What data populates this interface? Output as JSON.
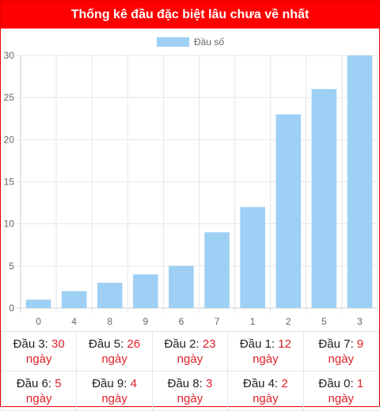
{
  "title": "Thống kê đầu đặc biệt lâu chưa về nhất",
  "colors": {
    "header": "#ff0000",
    "bar": "#9ecff4",
    "highlight": "#e0202a"
  },
  "chart_data": {
    "type": "bar",
    "categories": [
      "0",
      "4",
      "8",
      "9",
      "6",
      "7",
      "1",
      "2",
      "5",
      "3"
    ],
    "series": [
      {
        "name": "Đầu số",
        "values": [
          1,
          2,
          3,
          4,
          5,
          9,
          12,
          23,
          26,
          30
        ]
      }
    ],
    "ylim": [
      0,
      30
    ],
    "yticks": [
      0,
      5,
      10,
      15,
      20,
      25,
      30
    ],
    "grid": true,
    "legend": "top-center"
  },
  "stats": {
    "unit": "ngày",
    "rows": [
      [
        {
          "label": "Đầu 3:",
          "value": "30"
        },
        {
          "label": "Đầu 5:",
          "value": "26"
        },
        {
          "label": "Đầu 2:",
          "value": "23"
        },
        {
          "label": "Đầu 1:",
          "value": "12"
        },
        {
          "label": "Đầu 7:",
          "value": "9"
        }
      ],
      [
        {
          "label": "Đầu 6:",
          "value": "5"
        },
        {
          "label": "Đầu 9:",
          "value": "4"
        },
        {
          "label": "Đầu 8:",
          "value": "3"
        },
        {
          "label": "Đầu 4:",
          "value": "2"
        },
        {
          "label": "Đầu 0:",
          "value": "1"
        }
      ]
    ]
  }
}
